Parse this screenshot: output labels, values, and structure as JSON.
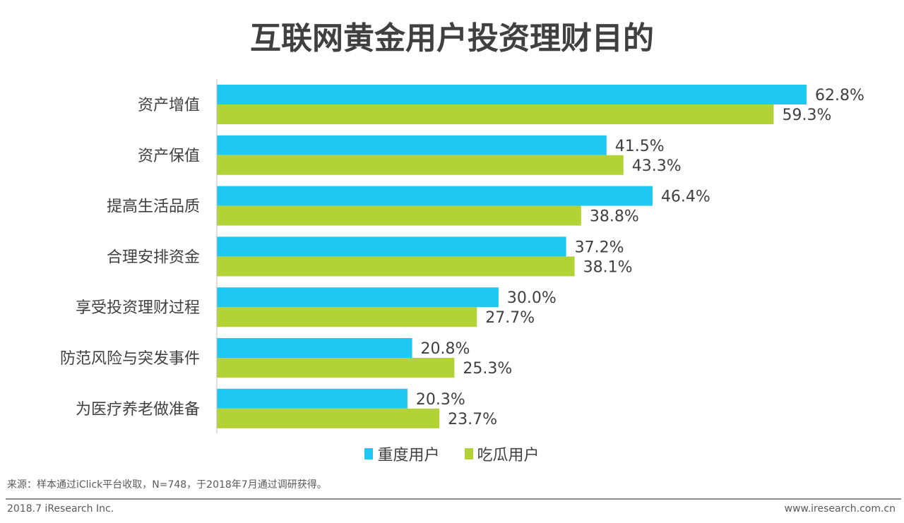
{
  "chart_data": {
    "type": "bar",
    "orientation": "horizontal",
    "title": "互联网黄金用户投资理财目的",
    "categories": [
      "资产增值",
      "资产保值",
      "提高生活品质",
      "合理安排资金",
      "享受投资理财过程",
      "防范风险与突发事件",
      "为医疗养老做准备"
    ],
    "series": [
      {
        "name": "重度用户",
        "color": "#1ec8f0",
        "values": [
          62.8,
          41.5,
          46.4,
          37.2,
          30.0,
          20.8,
          20.3
        ],
        "labels": [
          "62.8%",
          "41.5%",
          "46.4%",
          "37.2%",
          "30.0%",
          "20.8%",
          "20.3%"
        ]
      },
      {
        "name": "吃瓜用户",
        "color": "#b2d235",
        "values": [
          59.3,
          43.3,
          38.8,
          38.1,
          27.7,
          25.3,
          23.7
        ],
        "labels": [
          "59.3%",
          "43.3%",
          "38.8%",
          "38.1%",
          "27.7%",
          "25.3%",
          "23.7%"
        ]
      }
    ],
    "xlim": [
      0,
      70
    ],
    "grid": false,
    "legend_position": "bottom"
  },
  "footer": {
    "source": "来源：样本通过iClick平台收取，N=748，于2018年7月通过调研获得。",
    "copyright": "2018.7 iResearch Inc.",
    "website": "www.iresearch.com.cn"
  }
}
